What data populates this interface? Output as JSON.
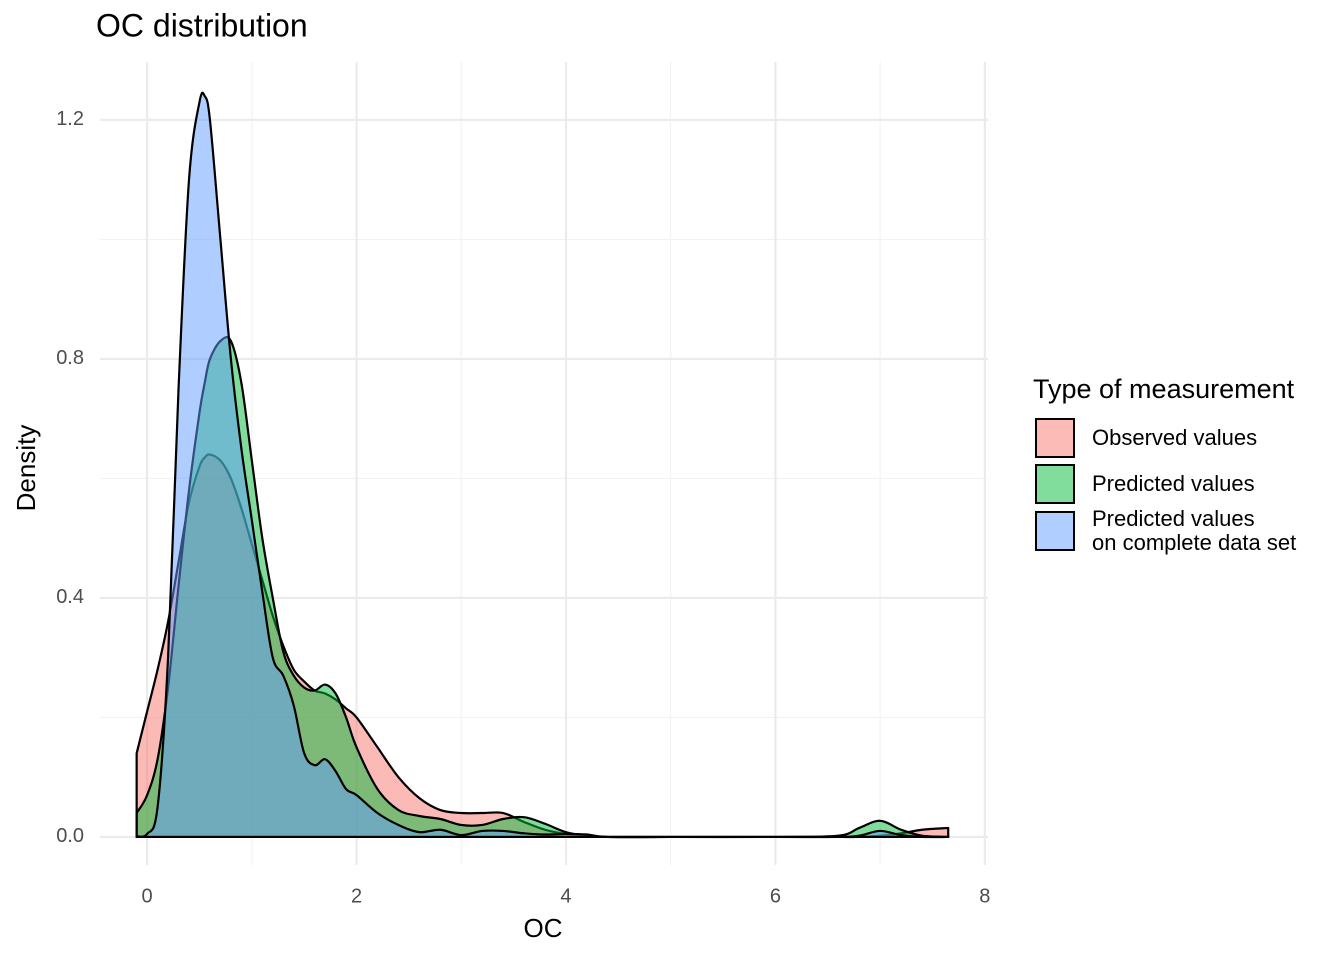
{
  "chart_data": {
    "type": "density",
    "title": "OC distribution",
    "x_label": "OC",
    "y_label": "Density",
    "legend_title": "Type of measurement",
    "legend_position": "right",
    "grid": true,
    "xlim": [
      -0.45,
      8.03
    ],
    "ylim": [
      -0.047,
      1.297
    ],
    "xticks": [
      0,
      2,
      4,
      6,
      8
    ],
    "yticks": [
      {
        "value": 0,
        "label": "0.0"
      },
      {
        "value": 0.4,
        "label": "0.4"
      },
      {
        "value": 0.8,
        "label": "0.8"
      },
      {
        "value": 1.2,
        "label": "1.2"
      }
    ],
    "minor_xticks": [
      1,
      3,
      5,
      7
    ],
    "minor_yticks": [
      0.2,
      0.6,
      1.0
    ],
    "x": [
      -0.1,
      0,
      0.1,
      0.2,
      0.3,
      0.4,
      0.5,
      0.55,
      0.6,
      0.7,
      0.8,
      0.9,
      1.0,
      1.1,
      1.2,
      1.3,
      1.4,
      1.5,
      1.6,
      1.7,
      1.8,
      1.9,
      2.0,
      2.2,
      2.4,
      2.6,
      2.8,
      3.0,
      3.2,
      3.4,
      3.6,
      3.8,
      4.0,
      4.2,
      4.4,
      5,
      6,
      6.6,
      6.8,
      7.0,
      7.2,
      7.4,
      7.65
    ],
    "series": [
      {
        "name": "Observed values",
        "color": "#F8766D",
        "values": [
          0.14,
          0.21,
          0.28,
          0.36,
          0.46,
          0.56,
          0.62,
          0.635,
          0.64,
          0.63,
          0.6,
          0.55,
          0.49,
          0.43,
          0.37,
          0.32,
          0.28,
          0.26,
          0.245,
          0.24,
          0.23,
          0.215,
          0.2,
          0.15,
          0.1,
          0.065,
          0.045,
          0.04,
          0.04,
          0.04,
          0.025,
          0.012,
          0.005,
          0.002,
          0,
          0,
          0,
          0,
          0,
          0.002,
          0.006,
          0.012,
          0.015
        ]
      },
      {
        "name": "Predicted values",
        "color": "#00BA38",
        "values": [
          0.04,
          0.07,
          0.13,
          0.25,
          0.42,
          0.58,
          0.71,
          0.76,
          0.8,
          0.83,
          0.83,
          0.76,
          0.63,
          0.5,
          0.4,
          0.31,
          0.27,
          0.25,
          0.245,
          0.255,
          0.24,
          0.2,
          0.15,
          0.08,
          0.045,
          0.035,
          0.03,
          0.02,
          0.02,
          0.03,
          0.033,
          0.022,
          0.008,
          0.002,
          0,
          0,
          0,
          0.002,
          0.015,
          0.027,
          0.012,
          0.002,
          0
        ]
      },
      {
        "name": "Predicted values\non complete data set",
        "color": "#619CFF",
        "values": [
          0.001,
          0.005,
          0.05,
          0.3,
          0.75,
          1.1,
          1.23,
          1.24,
          1.2,
          1.0,
          0.8,
          0.65,
          0.53,
          0.41,
          0.3,
          0.27,
          0.22,
          0.14,
          0.12,
          0.13,
          0.11,
          0.08,
          0.07,
          0.04,
          0.02,
          0.008,
          0.012,
          0.003,
          0.01,
          0.01,
          0.006,
          0.004,
          0.005,
          0.004,
          0,
          0,
          0,
          0,
          0.002,
          0.01,
          0.003,
          0,
          0
        ]
      }
    ]
  }
}
